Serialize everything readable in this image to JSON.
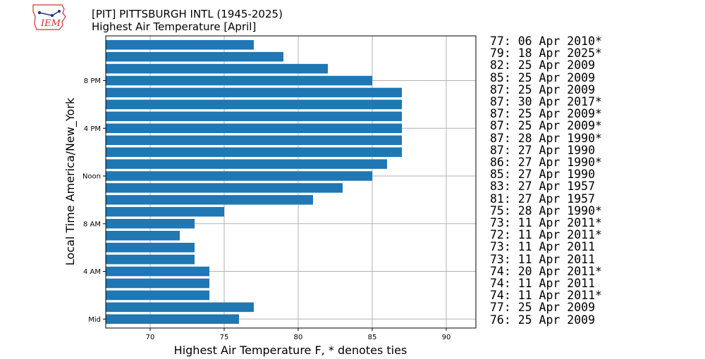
{
  "logo": {
    "text": "IEM"
  },
  "header": {
    "title": "[PIT] PITTSBURGH INTL (1945-2025)",
    "subtitle": "Highest Air Temperature [April]"
  },
  "chart_data": {
    "type": "bar",
    "orientation": "horizontal",
    "xlabel": "Highest Air Temperature F, * denotes ties",
    "ylabel": "Local Time America/New_York",
    "xlim": [
      67,
      92
    ],
    "xticks": [
      70,
      75,
      80,
      85,
      90
    ],
    "ytick_labels": [
      "Mid",
      "4 AM",
      "8 AM",
      "Noon",
      "4 PM",
      "8 PM"
    ],
    "grid": true,
    "bar_color": "#1f77b4",
    "hours": [
      0,
      1,
      2,
      3,
      4,
      5,
      6,
      7,
      8,
      9,
      10,
      11,
      12,
      13,
      14,
      15,
      16,
      17,
      18,
      19,
      20,
      21,
      22,
      23
    ],
    "values": [
      76,
      77,
      74,
      74,
      74,
      73,
      73,
      72,
      73,
      75,
      81,
      83,
      85,
      86,
      87,
      87,
      87,
      87,
      87,
      87,
      85,
      82,
      79,
      77
    ]
  },
  "records": [
    "77: 06 Apr 2010*",
    "79: 18 Apr 2025*",
    "82: 25 Apr 2009",
    "85: 25 Apr 2009",
    "87: 25 Apr 2009",
    "87: 30 Apr 2017*",
    "87: 25 Apr 2009*",
    "87: 25 Apr 2009*",
    "87: 28 Apr 1990*",
    "87: 27 Apr 1990",
    "86: 27 Apr 1990*",
    "85: 27 Apr 1990",
    "83: 27 Apr 1957",
    "81: 27 Apr 1957",
    "75: 28 Apr 1990*",
    "73: 11 Apr 2011*",
    "72: 11 Apr 2011*",
    "73: 11 Apr 2011",
    "73: 11 Apr 2011",
    "74: 20 Apr 2011*",
    "74: 11 Apr 2011",
    "74: 11 Apr 2011*",
    "77: 25 Apr 2009",
    "76: 25 Apr 2009"
  ]
}
